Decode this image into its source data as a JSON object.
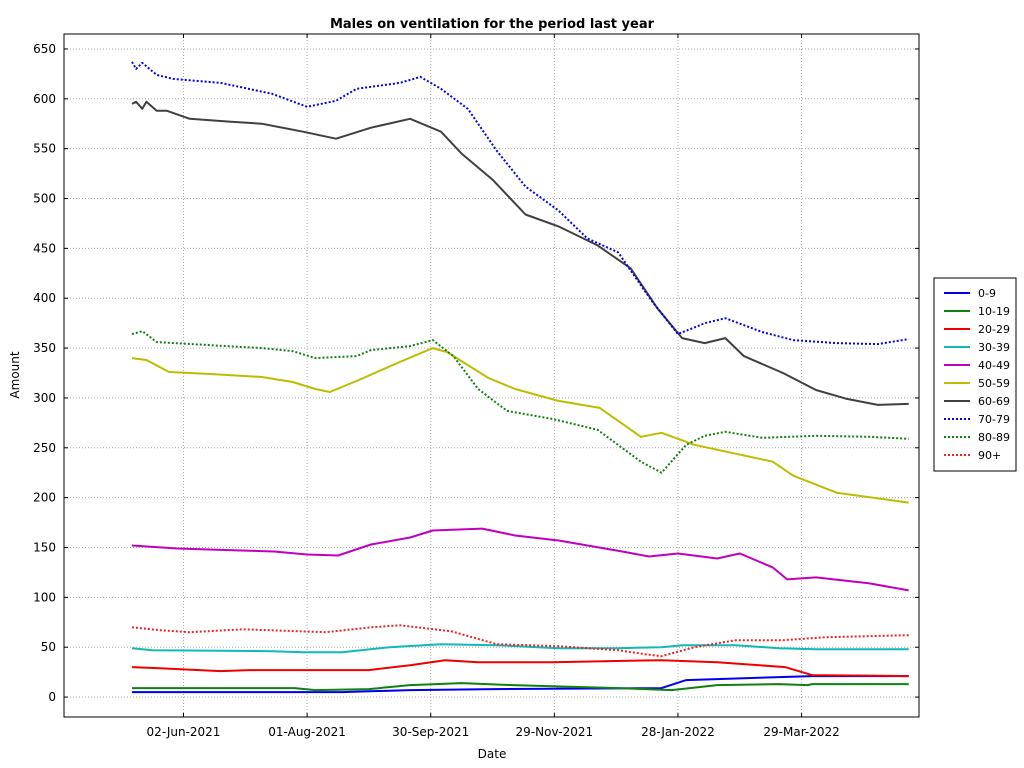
{
  "chart_data": {
    "type": "line",
    "title": "Males on ventilation for the period last year",
    "xlabel": "Date",
    "ylabel": "Amount",
    "ylim": [
      -20,
      665
    ],
    "xlim": [
      "2021-04-05",
      "2022-05-25"
    ],
    "yticks": [
      0,
      50,
      100,
      150,
      200,
      250,
      300,
      350,
      400,
      450,
      500,
      550,
      600,
      650
    ],
    "xticks": [
      {
        "date": "2021-06-02",
        "label": "02-Jun-2021"
      },
      {
        "date": "2021-08-01",
        "label": "01-Aug-2021"
      },
      {
        "date": "2021-09-30",
        "label": "30-Sep-2021"
      },
      {
        "date": "2021-11-29",
        "label": "29-Nov-2021"
      },
      {
        "date": "2022-01-28",
        "label": "28-Jan-2022"
      },
      {
        "date": "2022-03-29",
        "label": "29-Mar-2022"
      }
    ],
    "grid": true,
    "legend_position": "right",
    "series": [
      {
        "name": "0-9",
        "color": "#0000ee",
        "dash": "solid",
        "points": [
          [
            "2021-05-08",
            5
          ],
          [
            "2021-08-18",
            5
          ],
          [
            "2021-09-20",
            7
          ],
          [
            "2021-10-31",
            8
          ],
          [
            "2022-01-20",
            9
          ],
          [
            "2022-02-01",
            17
          ],
          [
            "2022-03-18",
            20
          ],
          [
            "2022-04-03",
            21
          ],
          [
            "2022-05-20",
            21
          ]
        ]
      },
      {
        "name": "10-19",
        "color": "#108010",
        "dash": "solid",
        "points": [
          [
            "2021-05-08",
            9
          ],
          [
            "2021-07-26",
            9
          ],
          [
            "2021-08-05",
            7
          ],
          [
            "2021-08-31",
            8
          ],
          [
            "2021-09-20",
            12
          ],
          [
            "2021-10-15",
            14
          ],
          [
            "2021-11-09",
            12
          ],
          [
            "2021-12-30",
            9
          ],
          [
            "2022-01-25",
            7
          ],
          [
            "2022-02-16",
            12
          ],
          [
            "2022-03-18",
            13
          ],
          [
            "2022-04-01",
            12
          ],
          [
            "2022-04-03",
            13
          ],
          [
            "2022-05-20",
            13
          ]
        ]
      },
      {
        "name": "20-29",
        "color": "#ee0000",
        "dash": "solid",
        "points": [
          [
            "2021-05-08",
            30
          ],
          [
            "2021-05-20",
            29
          ],
          [
            "2021-06-20",
            26
          ],
          [
            "2021-07-04",
            27
          ],
          [
            "2021-08-31",
            27
          ],
          [
            "2021-09-20",
            32
          ],
          [
            "2021-10-07",
            37
          ],
          [
            "2021-10-23",
            35
          ],
          [
            "2021-11-28",
            35
          ],
          [
            "2022-01-20",
            37
          ],
          [
            "2022-02-16",
            35
          ],
          [
            "2022-03-21",
            30
          ],
          [
            "2022-04-03",
            22
          ],
          [
            "2022-05-20",
            21
          ]
        ]
      },
      {
        "name": "30-39",
        "color": "#10b8b8",
        "dash": "solid",
        "points": [
          [
            "2021-05-08",
            49
          ],
          [
            "2021-05-18",
            47
          ],
          [
            "2021-07-15",
            46
          ],
          [
            "2021-07-30",
            45
          ],
          [
            "2021-08-18",
            45
          ],
          [
            "2021-09-10",
            50
          ],
          [
            "2021-10-05",
            53
          ],
          [
            "2021-11-01",
            52
          ],
          [
            "2021-12-01",
            49
          ],
          [
            "2021-12-30",
            49
          ],
          [
            "2022-01-20",
            50
          ],
          [
            "2022-01-30",
            52
          ],
          [
            "2022-02-25",
            52
          ],
          [
            "2022-03-18",
            49
          ],
          [
            "2022-04-05",
            48
          ],
          [
            "2022-05-20",
            48
          ]
        ]
      },
      {
        "name": "40-49",
        "color": "#c000c0",
        "dash": "solid",
        "points": [
          [
            "2021-05-08",
            152
          ],
          [
            "2021-05-30",
            149
          ],
          [
            "2021-06-30",
            147
          ],
          [
            "2021-07-16",
            146
          ],
          [
            "2021-08-01",
            143
          ],
          [
            "2021-08-16",
            142
          ],
          [
            "2021-09-01",
            153
          ],
          [
            "2021-09-20",
            160
          ],
          [
            "2021-10-01",
            167
          ],
          [
            "2021-10-25",
            169
          ],
          [
            "2021-11-10",
            162
          ],
          [
            "2021-12-01",
            157
          ],
          [
            "2022-01-01",
            146
          ],
          [
            "2022-01-14",
            141
          ],
          [
            "2022-01-28",
            144
          ],
          [
            "2022-02-16",
            139
          ],
          [
            "2022-02-27",
            144
          ],
          [
            "2022-03-15",
            130
          ],
          [
            "2022-03-22",
            118
          ],
          [
            "2022-04-05",
            120
          ],
          [
            "2022-05-01",
            114
          ],
          [
            "2022-05-20",
            107
          ]
        ]
      },
      {
        "name": "50-59",
        "color": "#bdbd00",
        "dash": "solid",
        "points": [
          [
            "2021-05-08",
            340
          ],
          [
            "2021-05-15",
            338
          ],
          [
            "2021-05-26",
            326
          ],
          [
            "2021-06-15",
            324
          ],
          [
            "2021-07-10",
            321
          ],
          [
            "2021-07-25",
            316
          ],
          [
            "2021-08-05",
            309
          ],
          [
            "2021-08-12",
            306
          ],
          [
            "2021-08-25",
            317
          ],
          [
            "2021-09-15",
            336
          ],
          [
            "2021-10-01",
            350
          ],
          [
            "2021-10-08",
            346
          ],
          [
            "2021-10-28",
            320
          ],
          [
            "2021-11-10",
            309
          ],
          [
            "2021-12-01",
            297
          ],
          [
            "2021-12-21",
            290
          ],
          [
            "2022-01-10",
            261
          ],
          [
            "2022-01-20",
            265
          ],
          [
            "2022-02-05",
            253
          ],
          [
            "2022-03-15",
            236
          ],
          [
            "2022-03-25",
            222
          ],
          [
            "2022-04-15",
            205
          ],
          [
            "2022-05-20",
            195
          ]
        ]
      },
      {
        "name": "60-69",
        "color": "#404040",
        "dash": "solid",
        "points": [
          [
            "2021-05-08",
            595
          ],
          [
            "2021-05-10",
            597
          ],
          [
            "2021-05-13",
            590
          ],
          [
            "2021-05-15",
            597
          ],
          [
            "2021-05-20",
            588
          ],
          [
            "2021-05-25",
            588
          ],
          [
            "2021-06-05",
            580
          ],
          [
            "2021-06-25",
            577
          ],
          [
            "2021-07-10",
            575
          ],
          [
            "2021-07-30",
            567
          ],
          [
            "2021-08-15",
            560
          ],
          [
            "2021-09-01",
            571
          ],
          [
            "2021-09-20",
            580
          ],
          [
            "2021-10-05",
            567
          ],
          [
            "2021-10-15",
            545
          ],
          [
            "2021-10-30",
            519
          ],
          [
            "2021-11-15",
            484
          ],
          [
            "2021-12-01",
            472
          ],
          [
            "2021-12-20",
            453
          ],
          [
            "2022-01-05",
            430
          ],
          [
            "2022-01-18",
            390
          ],
          [
            "2022-01-30",
            360
          ],
          [
            "2022-02-10",
            355
          ],
          [
            "2022-02-20",
            360
          ],
          [
            "2022-03-01",
            342
          ],
          [
            "2022-03-20",
            325
          ],
          [
            "2022-04-05",
            308
          ],
          [
            "2022-04-20",
            299
          ],
          [
            "2022-05-05",
            293
          ],
          [
            "2022-05-20",
            294
          ]
        ]
      },
      {
        "name": "70-79",
        "color": "#0000ee",
        "dash": "dotted",
        "points": [
          [
            "2021-05-08",
            637
          ],
          [
            "2021-05-10",
            630
          ],
          [
            "2021-05-13",
            636
          ],
          [
            "2021-05-20",
            624
          ],
          [
            "2021-05-28",
            620
          ],
          [
            "2021-06-20",
            616
          ],
          [
            "2021-07-15",
            605
          ],
          [
            "2021-08-01",
            592
          ],
          [
            "2021-08-15",
            598
          ],
          [
            "2021-08-25",
            610
          ],
          [
            "2021-09-15",
            616
          ],
          [
            "2021-09-25",
            622
          ],
          [
            "2021-10-05",
            610
          ],
          [
            "2021-10-18",
            590
          ],
          [
            "2021-11-01",
            548
          ],
          [
            "2021-11-15",
            512
          ],
          [
            "2021-12-01",
            488
          ],
          [
            "2021-12-15",
            460
          ],
          [
            "2021-12-30",
            446
          ],
          [
            "2022-01-15",
            398
          ],
          [
            "2022-01-28",
            364
          ],
          [
            "2022-02-10",
            375
          ],
          [
            "2022-02-20",
            380
          ],
          [
            "2022-03-10",
            366
          ],
          [
            "2022-03-25",
            358
          ],
          [
            "2022-04-15",
            355
          ],
          [
            "2022-05-05",
            354
          ],
          [
            "2022-05-20",
            359
          ]
        ]
      },
      {
        "name": "80-89",
        "color": "#108010",
        "dash": "dotted",
        "points": [
          [
            "2021-05-08",
            364
          ],
          [
            "2021-05-13",
            367
          ],
          [
            "2021-05-20",
            356
          ],
          [
            "2021-07-10",
            350
          ],
          [
            "2021-07-25",
            347
          ],
          [
            "2021-08-05",
            340
          ],
          [
            "2021-08-25",
            342
          ],
          [
            "2021-09-01",
            348
          ],
          [
            "2021-09-20",
            352
          ],
          [
            "2021-10-01",
            358
          ],
          [
            "2021-10-11",
            342
          ],
          [
            "2021-10-23",
            309
          ],
          [
            "2021-11-06",
            287
          ],
          [
            "2021-11-28",
            279
          ],
          [
            "2021-12-20",
            268
          ],
          [
            "2022-01-10",
            236
          ],
          [
            "2022-01-20",
            225
          ],
          [
            "2022-02-01",
            253
          ],
          [
            "2022-02-10",
            262
          ],
          [
            "2022-02-20",
            266
          ],
          [
            "2022-03-10",
            260
          ],
          [
            "2022-04-05",
            262
          ],
          [
            "2022-05-01",
            261
          ],
          [
            "2022-05-20",
            259
          ]
        ]
      },
      {
        "name": "90+",
        "color": "#ee2020",
        "dash": "dotted",
        "points": [
          [
            "2021-05-08",
            70
          ],
          [
            "2021-05-22",
            67
          ],
          [
            "2021-06-05",
            65
          ],
          [
            "2021-07-01",
            68
          ],
          [
            "2021-08-10",
            65
          ],
          [
            "2021-09-01",
            70
          ],
          [
            "2021-09-15",
            72
          ],
          [
            "2021-10-10",
            66
          ],
          [
            "2021-11-01",
            53
          ],
          [
            "2021-12-01",
            51
          ],
          [
            "2021-12-30",
            47
          ],
          [
            "2022-01-12",
            43
          ],
          [
            "2022-01-20",
            41
          ],
          [
            "2022-02-05",
            50
          ],
          [
            "2022-02-25",
            57
          ],
          [
            "2022-03-20",
            57
          ],
          [
            "2022-04-10",
            60
          ],
          [
            "2022-05-20",
            62
          ]
        ]
      }
    ]
  }
}
